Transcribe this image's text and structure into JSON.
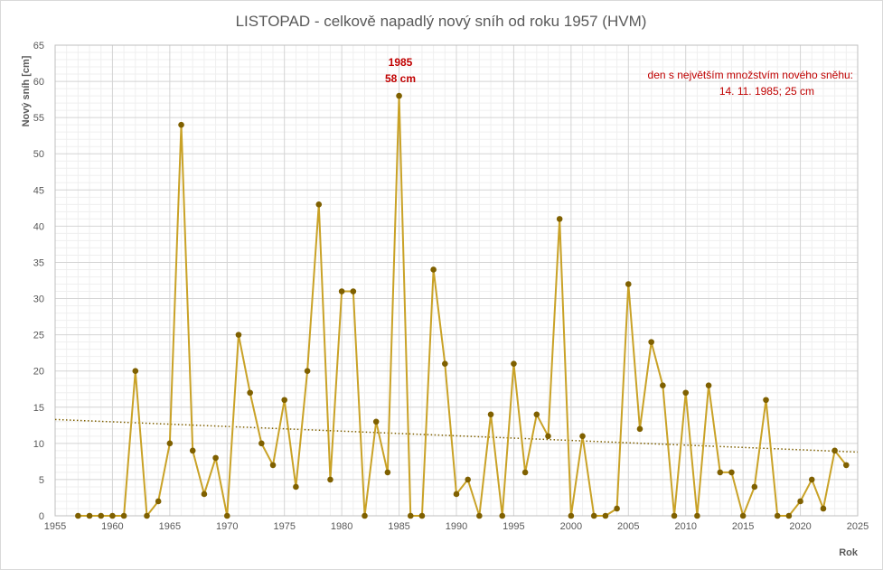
{
  "chart_data": {
    "type": "line",
    "title": "LISTOPAD - celkově napadlý nový sníh od roku 1957 (HVM)",
    "xlabel": "Rok",
    "ylabel": "Nový sníh [cm]",
    "xlim": [
      1955,
      2025
    ],
    "ylim": [
      0,
      65
    ],
    "x_ticks": [
      1955,
      1960,
      1965,
      1970,
      1975,
      1980,
      1985,
      1990,
      1995,
      2000,
      2005,
      2010,
      2015,
      2020,
      2025
    ],
    "y_ticks": [
      0,
      5,
      10,
      15,
      20,
      25,
      30,
      35,
      40,
      45,
      50,
      55,
      60,
      65
    ],
    "grid": true,
    "minor_grid": true,
    "series": [
      {
        "color": "#c9a227",
        "marker_color": "#7f6000",
        "x": [
          1957,
          1958,
          1959,
          1960,
          1961,
          1962,
          1963,
          1964,
          1965,
          1966,
          1967,
          1968,
          1969,
          1970,
          1971,
          1972,
          1973,
          1974,
          1975,
          1976,
          1977,
          1978,
          1979,
          1980,
          1981,
          1982,
          1983,
          1984,
          1985,
          1986,
          1987,
          1988,
          1989,
          1990,
          1991,
          1992,
          1993,
          1994,
          1995,
          1996,
          1997,
          1998,
          1999,
          2000,
          2001,
          2002,
          2003,
          2004,
          2005,
          2006,
          2007,
          2008,
          2009,
          2010,
          2011,
          2012,
          2013,
          2014,
          2015,
          2016,
          2017,
          2018,
          2019,
          2020,
          2021,
          2022,
          2023,
          2024
        ],
        "values": [
          0,
          0,
          0,
          0,
          0,
          20,
          0,
          2,
          10,
          54,
          9,
          3,
          8,
          0,
          25,
          17,
          10,
          7,
          16,
          4,
          20,
          43,
          5,
          31,
          31,
          0,
          13,
          6,
          58,
          0,
          0,
          34,
          21,
          3,
          5,
          0,
          14,
          0,
          21,
          6,
          14,
          11,
          41,
          0,
          11,
          0,
          0,
          1,
          32,
          12,
          24,
          18,
          0,
          17,
          0,
          18,
          6,
          6,
          0,
          4,
          16,
          0,
          0,
          2,
          5,
          1,
          9,
          7
        ]
      }
    ],
    "trendline": {
      "color": "#7f6000",
      "style": "dotted",
      "start": [
        1955,
        13.3
      ],
      "end": [
        2025,
        8.8
      ]
    },
    "annotations": {
      "peak_year": "1985",
      "peak_value": "58 cm",
      "record_line1": "den s největším množstvím nového sněhu:",
      "record_line2": "14. 11. 1985;  25 cm"
    }
  }
}
